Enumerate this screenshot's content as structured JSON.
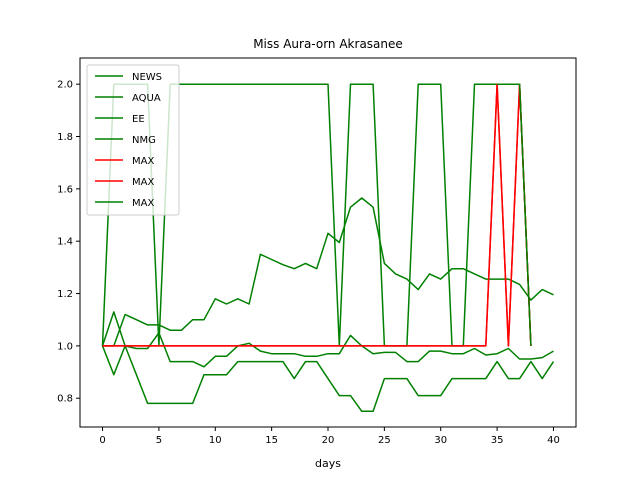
{
  "chart_data": {
    "type": "line",
    "title": "Miss Aura-orn Akrasanee",
    "xlabel": "days",
    "ylabel": "",
    "xlim": [
      -2,
      42
    ],
    "ylim": [
      0.69,
      2.1
    ],
    "xticks": [
      0,
      5,
      10,
      15,
      20,
      25,
      30,
      35,
      40
    ],
    "yticks": [
      0.8,
      1.0,
      1.2,
      1.4,
      1.6,
      1.8,
      2.0
    ],
    "grid": false,
    "legend_position": "top-left",
    "colors": {
      "green": "#008000",
      "red": "#ff0000"
    },
    "series": [
      {
        "name": "NEWS",
        "color": "#008000",
        "x": [
          0,
          1,
          2,
          3,
          4,
          5,
          6,
          7,
          8,
          9,
          10,
          11,
          12,
          13,
          14,
          15,
          16,
          17,
          18,
          19,
          20,
          21,
          22,
          23,
          24,
          25,
          26,
          27,
          28,
          29,
          30,
          31,
          32,
          33,
          34,
          35,
          36,
          37,
          38,
          39,
          40
        ],
        "y": [
          1.0,
          0.89,
          1.0,
          0.89,
          0.78,
          0.78,
          0.78,
          0.78,
          0.78,
          0.89,
          0.89,
          0.89,
          0.94,
          0.94,
          0.94,
          0.94,
          0.94,
          0.875,
          0.94,
          0.94,
          0.875,
          0.81,
          0.81,
          0.75,
          0.75,
          0.875,
          0.875,
          0.875,
          0.81,
          0.81,
          0.81,
          0.875,
          0.875,
          0.875,
          0.875,
          0.94,
          0.875,
          0.875,
          0.94,
          0.875,
          0.94
        ]
      },
      {
        "name": "AQUA",
        "color": "#008000",
        "x": [
          0,
          1,
          2,
          3,
          4,
          5,
          6,
          7,
          8,
          9,
          10,
          11,
          12,
          13,
          14,
          15,
          16,
          17,
          18,
          19,
          20,
          21,
          22,
          23,
          24,
          25,
          26,
          27,
          28,
          29,
          30,
          31,
          32,
          33,
          34,
          35,
          36,
          37,
          38,
          39,
          40
        ],
        "y": [
          1.0,
          1.13,
          1.0,
          0.99,
          0.99,
          1.05,
          0.94,
          0.94,
          0.94,
          0.92,
          0.96,
          0.96,
          1.0,
          1.01,
          0.98,
          0.97,
          0.97,
          0.97,
          0.96,
          0.96,
          0.97,
          0.97,
          1.04,
          1.0,
          0.97,
          0.975,
          0.975,
          0.94,
          0.94,
          0.98,
          0.98,
          0.97,
          0.97,
          0.99,
          0.965,
          0.97,
          0.99,
          0.95,
          0.95,
          0.955,
          0.98
        ]
      },
      {
        "name": "EE",
        "color": "#008000",
        "x": [
          0,
          1,
          2,
          3,
          4,
          5,
          6,
          7,
          8,
          9,
          10,
          11,
          12,
          13,
          14,
          15,
          16,
          17,
          18,
          19,
          20,
          21,
          22,
          23,
          24,
          25,
          26,
          27,
          28,
          29,
          30,
          31,
          32,
          33,
          34,
          35,
          36,
          37,
          38,
          39,
          40
        ],
        "y": [
          1.0,
          1.0,
          1.12,
          1.1,
          1.08,
          1.08,
          1.06,
          1.06,
          1.1,
          1.1,
          1.18,
          1.16,
          1.18,
          1.16,
          1.35,
          1.33,
          1.31,
          1.295,
          1.315,
          1.295,
          1.43,
          1.395,
          1.53,
          1.565,
          1.53,
          1.315,
          1.275,
          1.255,
          1.215,
          1.275,
          1.255,
          1.295,
          1.295,
          1.275,
          1.255,
          1.255,
          1.255,
          1.235,
          1.175,
          1.215,
          1.195
        ]
      },
      {
        "name": "NMG",
        "color": "#008000",
        "x": [
          0,
          1,
          2,
          3,
          4,
          5,
          6,
          7,
          8,
          9,
          10,
          11,
          12,
          13,
          14,
          15,
          16,
          17,
          18,
          19,
          20,
          21,
          22,
          23,
          24,
          25,
          26,
          27,
          28,
          29,
          30,
          31,
          32,
          33,
          34,
          35,
          36,
          37,
          38,
          39,
          40
        ],
        "y": [
          1.0,
          2.0,
          2.0,
          2.0,
          2.0,
          1.0,
          2.0,
          2.0,
          2.0,
          2.0,
          2.0,
          2.0,
          2.0,
          2.0,
          2.0,
          2.0,
          2.0,
          2.0,
          2.0,
          2.0,
          2.0,
          1.0,
          2.0,
          2.0,
          2.0,
          1.0,
          1.0,
          1.0,
          2.0,
          2.0,
          2.0,
          1.0,
          1.0,
          2.0,
          2.0,
          2.0,
          2.0,
          2.0,
          1.0,
          null,
          null
        ]
      },
      {
        "name": "MAX",
        "color": "#ff0000",
        "x": [
          0,
          1,
          2,
          3,
          4,
          5,
          6,
          7,
          8,
          9,
          10,
          11,
          12,
          13,
          14,
          15,
          16,
          17,
          18,
          19,
          20,
          21,
          22,
          23,
          24,
          25,
          26,
          27,
          28,
          29,
          30,
          31,
          32,
          33,
          34,
          35,
          36,
          37,
          38
        ],
        "y": [
          1.0,
          1.0,
          1.0,
          1.0,
          1.0,
          1.0,
          1.0,
          1.0,
          1.0,
          1.0,
          1.0,
          1.0,
          1.0,
          1.0,
          1.0,
          1.0,
          1.0,
          1.0,
          1.0,
          1.0,
          1.0,
          1.0,
          1.0,
          1.0,
          1.0,
          1.0,
          1.0,
          1.0,
          1.0,
          1.0,
          1.0,
          1.0,
          1.0,
          1.0,
          1.0,
          2.0,
          1.0,
          2.0,
          1.0
        ]
      },
      {
        "name": "MAX",
        "color": "#ff0000",
        "x": [
          0,
          1,
          2,
          3,
          4,
          5,
          6,
          7,
          8,
          9,
          10,
          11,
          12,
          13,
          14,
          15,
          16,
          17,
          18,
          19,
          20,
          21,
          22,
          23,
          24,
          25,
          26,
          27,
          28,
          29,
          30,
          31,
          32,
          33,
          34,
          35,
          36,
          37,
          38
        ],
        "y": [
          1.0,
          1.0,
          1.0,
          1.0,
          1.0,
          1.0,
          1.0,
          1.0,
          1.0,
          1.0,
          1.0,
          1.0,
          1.0,
          1.0,
          1.0,
          1.0,
          1.0,
          1.0,
          1.0,
          1.0,
          1.0,
          1.0,
          1.0,
          1.0,
          1.0,
          1.0,
          1.0,
          1.0,
          1.0,
          1.0,
          1.0,
          1.0,
          1.0,
          1.0,
          1.0,
          2.0,
          1.0,
          2.0,
          1.0
        ]
      },
      {
        "name": "MAX",
        "color": "#008000",
        "x": [
          35,
          36,
          37,
          38
        ],
        "y": [
          2.0,
          2.0,
          2.0,
          1.0
        ]
      }
    ]
  }
}
